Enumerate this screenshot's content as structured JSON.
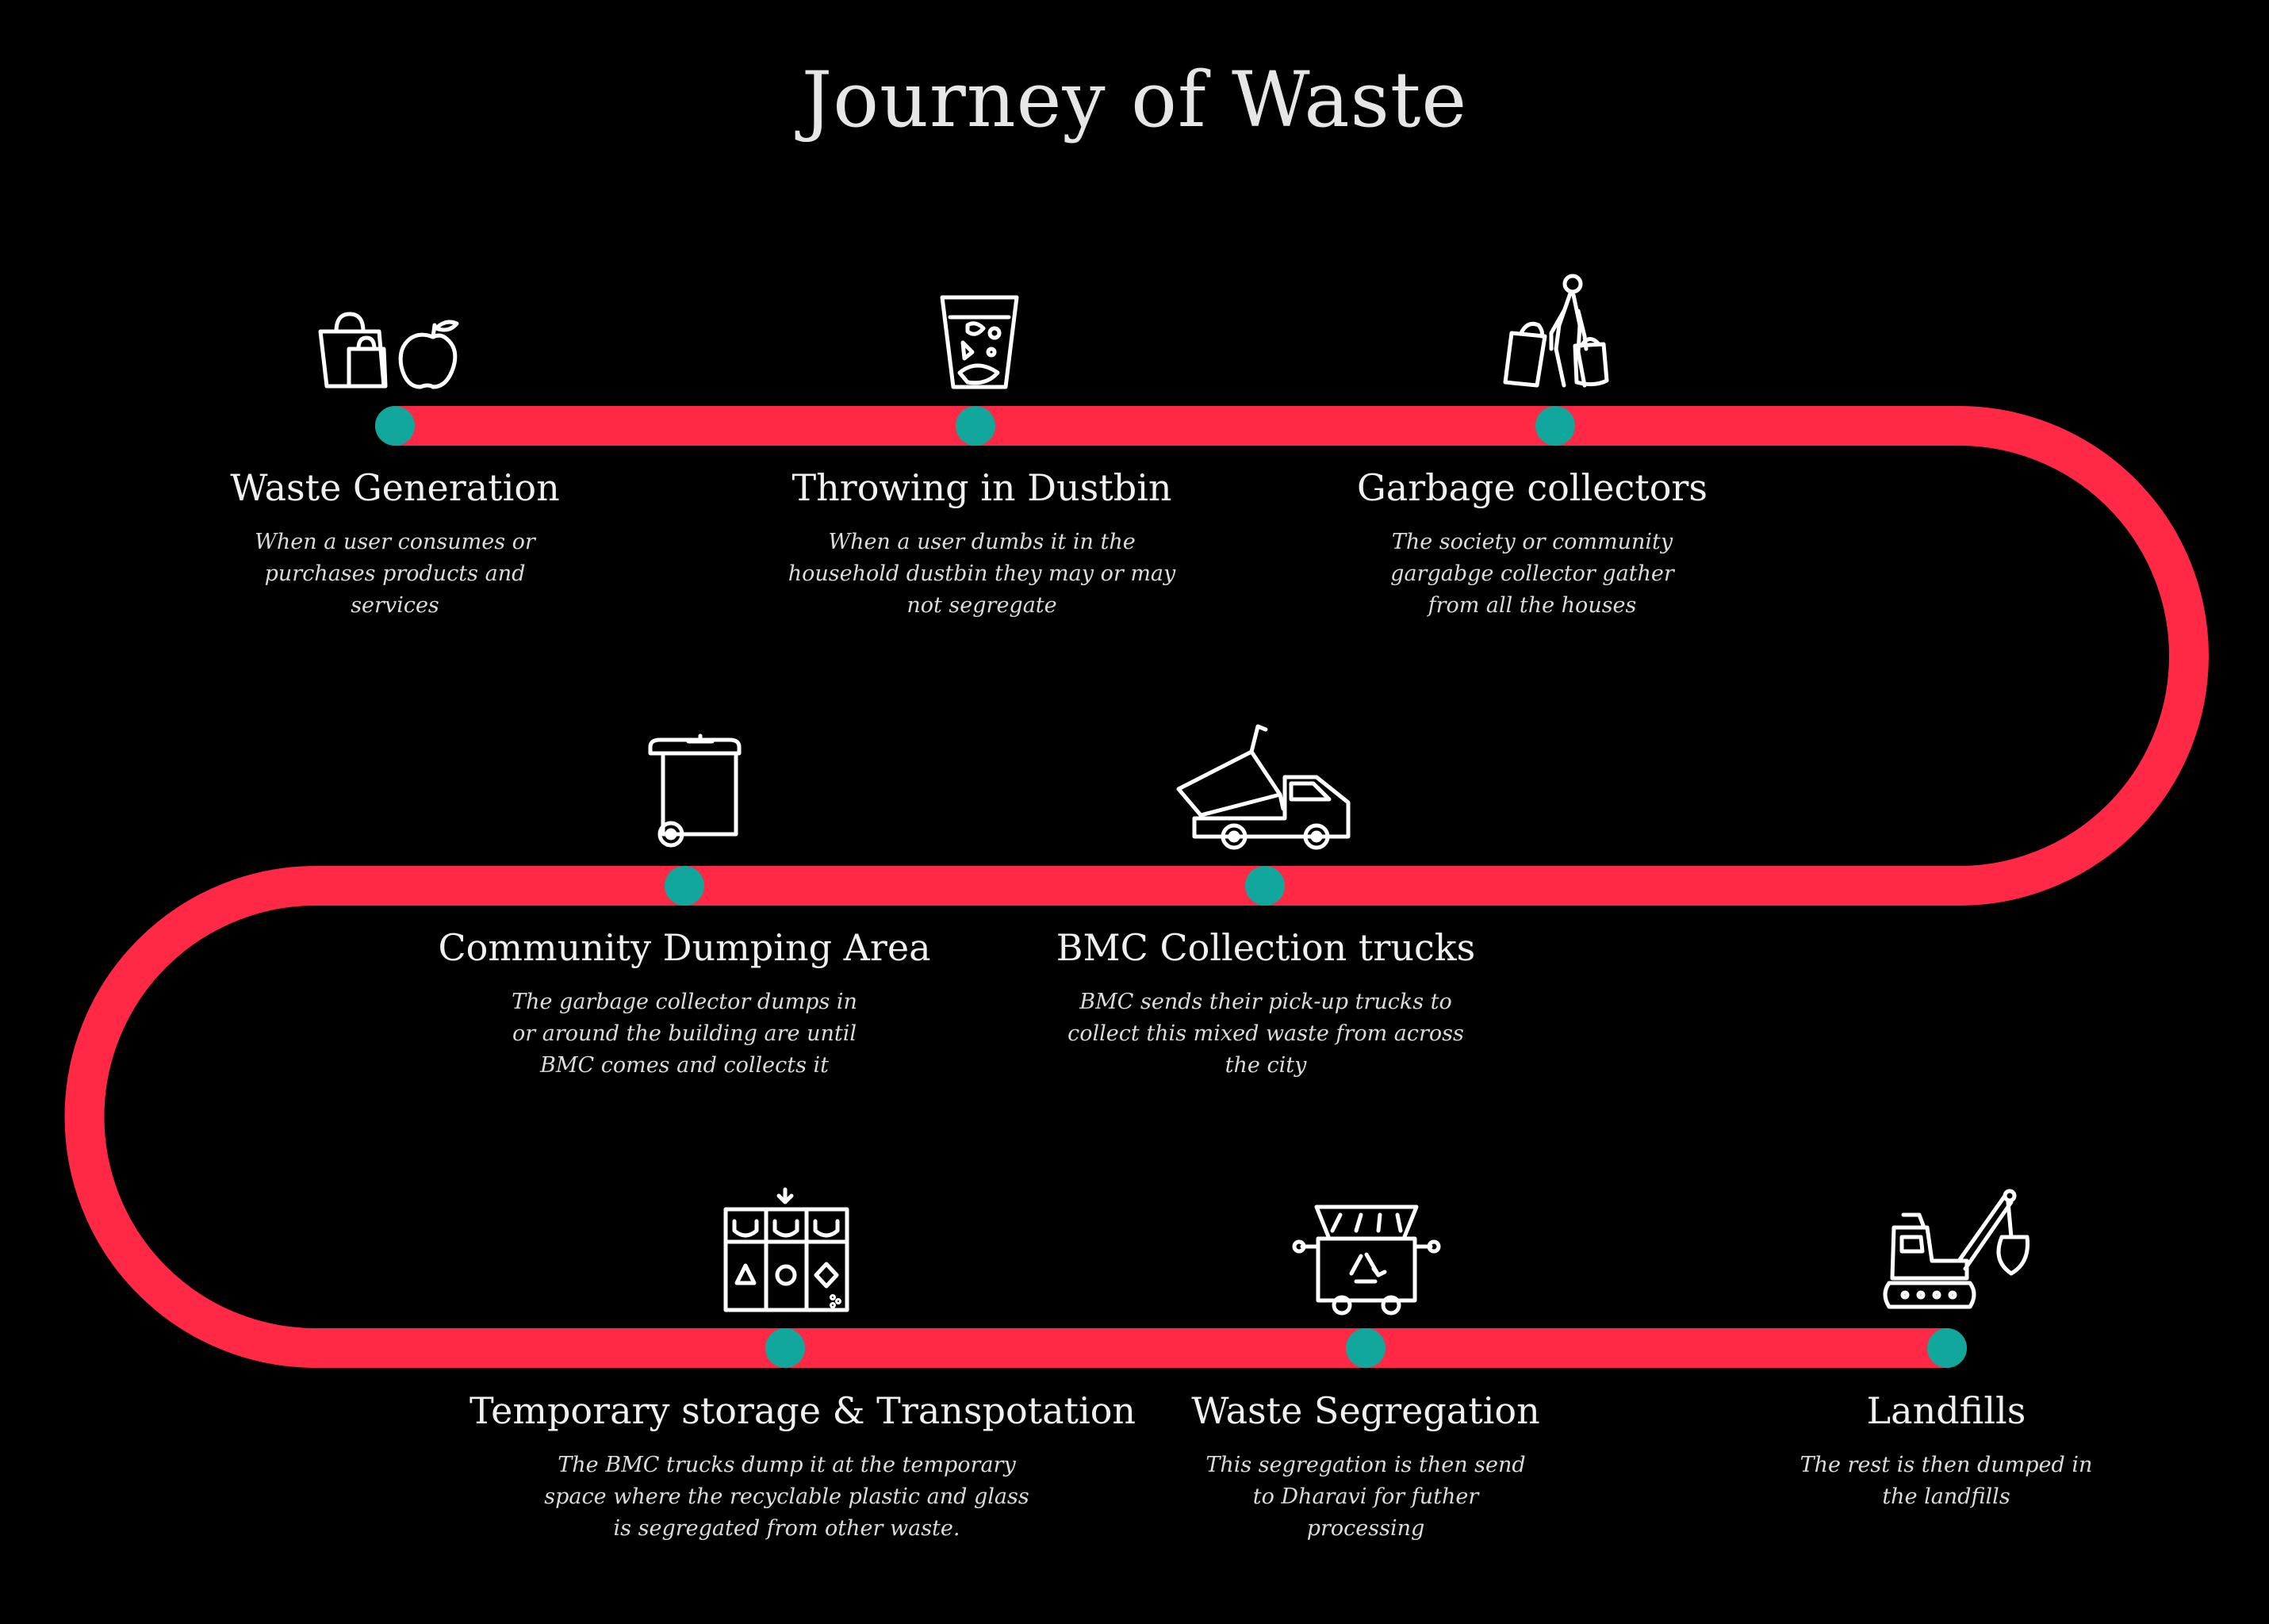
{
  "title": "Journey of Waste",
  "colors": {
    "path": "#ff2945",
    "node": "#12a79c",
    "background": "#000000",
    "text": "#f0f0f0"
  },
  "steps": [
    {
      "title": "Waste Generation",
      "icon": "shopping-bags-apple-icon",
      "desc": [
        "When a user consumes or",
        "purchases products and",
        "services"
      ]
    },
    {
      "title": "Throwing in Dustbin",
      "icon": "dustbin-glass-icon",
      "desc": [
        "When a user dumbs it in the",
        "household dustbin they may or may",
        "not segregate"
      ]
    },
    {
      "title": "Garbage collectors",
      "icon": "person-carrying-bags-icon",
      "desc": [
        "The society or community",
        "gargabge collector gather",
        "from all the houses"
      ]
    },
    {
      "title": "Community Dumping Area",
      "icon": "wheelie-bin-icon",
      "desc": [
        "The garbage collector dumps in",
        "or around the building are until",
        "BMC comes and collects it"
      ]
    },
    {
      "title": "BMC Collection trucks",
      "icon": "dump-truck-icon",
      "desc": [
        "BMC sends their pick-up trucks to",
        "collect this mixed waste from across",
        "the city"
      ]
    },
    {
      "title": "Temporary storage & Transpotation",
      "icon": "sorting-bins-icon",
      "desc": [
        "The BMC trucks dump it at the temporary",
        "space where the  recyclable plastic and glass",
        "is segregated from other waste."
      ]
    },
    {
      "title": "Waste Segregation",
      "icon": "recycling-container-icon",
      "desc": [
        "This segregation is then send",
        "to Dharavi for  futher",
        "processing"
      ]
    },
    {
      "title": "Landfills",
      "icon": "excavator-icon",
      "desc": [
        "The rest is then dumped in",
        "the landfills"
      ]
    }
  ]
}
